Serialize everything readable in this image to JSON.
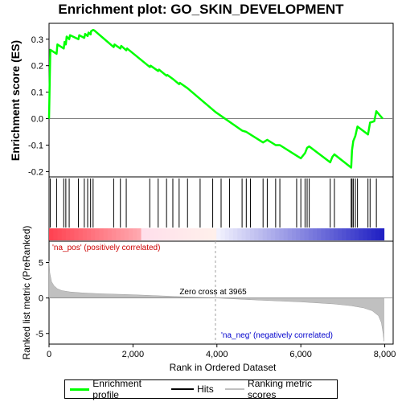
{
  "title": "Enrichment plot: GO_SKIN_DEVELOPMENT",
  "chart_data": [
    {
      "type": "line",
      "ylabel": "Enrichment score (ES)",
      "ylim": [
        -0.22,
        0.36
      ],
      "xlim": [
        0,
        8200
      ],
      "yticks": [
        "-0.2",
        "-0.1",
        "0.0",
        "0.1",
        "0.2",
        "0.3"
      ],
      "ytick_values": [
        -0.2,
        -0.1,
        0.0,
        0.1,
        0.2,
        0.3
      ],
      "grid": false,
      "series": [
        {
          "name": "Enrichment profile",
          "color": "#00ff00",
          "x": [
            0,
            20,
            30,
            180,
            200,
            350,
            370,
            400,
            420,
            480,
            500,
            700,
            720,
            840,
            860,
            920,
            940,
            990,
            1000,
            1050,
            1080,
            1540,
            1560,
            1700,
            1720,
            1840,
            1860,
            2400,
            2420,
            2600,
            2620,
            2800,
            2820,
            2950,
            3100,
            3120,
            3300,
            3965,
            4600,
            4700,
            4800,
            5100,
            5200,
            5400,
            5500,
            5900,
            6000,
            6100,
            6150,
            6200,
            6700,
            6750,
            6800,
            7200,
            7220,
            7250,
            7300,
            7350,
            7600,
            7650,
            7750,
            7800,
            7950
          ],
          "y": [
            0.0,
            0.17,
            0.26,
            0.245,
            0.28,
            0.265,
            0.29,
            0.28,
            0.31,
            0.3,
            0.315,
            0.3,
            0.315,
            0.305,
            0.32,
            0.312,
            0.325,
            0.318,
            0.33,
            0.335,
            0.333,
            0.27,
            0.28,
            0.265,
            0.275,
            0.258,
            0.265,
            0.195,
            0.2,
            0.18,
            0.185,
            0.162,
            0.165,
            0.15,
            0.13,
            0.135,
            0.115,
            0.025,
            -0.045,
            -0.05,
            -0.06,
            -0.09,
            -0.08,
            -0.1,
            -0.1,
            -0.14,
            -0.15,
            -0.13,
            -0.11,
            -0.105,
            -0.165,
            -0.145,
            -0.135,
            -0.185,
            -0.12,
            -0.085,
            -0.065,
            -0.03,
            -0.06,
            -0.015,
            -0.01,
            0.028,
            0.0
          ]
        }
      ]
    },
    {
      "type": "bar",
      "name": "Hits",
      "xlim": [
        0,
        8200
      ],
      "hits": [
        30,
        180,
        350,
        400,
        480,
        700,
        840,
        920,
        990,
        1050,
        1540,
        1700,
        1840,
        2400,
        2600,
        2800,
        2950,
        3100,
        3300,
        3600,
        3900,
        4100,
        4300,
        4600,
        4700,
        4800,
        5100,
        5200,
        5400,
        5500,
        5900,
        6000,
        6100,
        6150,
        6200,
        6700,
        6800,
        7200,
        7220,
        7250,
        7300,
        7350,
        7600,
        7650,
        7800
      ]
    },
    {
      "type": "area",
      "xlabel": "Rank in Ordered Dataset",
      "ylabel": "Ranked list metric (PreRanked)",
      "xlim": [
        0,
        8200
      ],
      "ylim": [
        -6.5,
        8
      ],
      "xticks": [
        "0",
        "2,000",
        "4,000",
        "6,000",
        "8,000"
      ],
      "xtick_values": [
        0,
        2000,
        4000,
        6000,
        8000
      ],
      "yticks": [
        "-5",
        "0",
        "5"
      ],
      "ytick_values": [
        -5,
        0,
        5
      ],
      "series": [
        {
          "name": "Ranking metric scores",
          "color": "#c0c0c0",
          "x": [
            0,
            20,
            60,
            120,
            200,
            300,
            500,
            800,
            1200,
            2000,
            3000,
            3965,
            5000,
            6000,
            6800,
            7200,
            7500,
            7700,
            7850,
            7920,
            7960,
            7980
          ],
          "y": [
            5.2,
            3.5,
            2.3,
            1.7,
            1.3,
            1.05,
            0.85,
            0.72,
            0.6,
            0.45,
            0.22,
            0.0,
            -0.3,
            -0.55,
            -0.85,
            -1.1,
            -1.4,
            -1.8,
            -2.5,
            -3.5,
            -5.0,
            -6.1
          ]
        }
      ],
      "annotations": [
        {
          "text": "'na_pos' (positively correlated)",
          "color": "#cc0000"
        },
        {
          "text": "Zero cross at 3965",
          "color": "#000000"
        },
        {
          "text": "'na_neg' (negatively correlated)",
          "color": "#0000cc"
        }
      ],
      "zero_cross": 3965
    }
  ],
  "legend": {
    "items": [
      {
        "label": "Enrichment profile",
        "color": "#00ff00"
      },
      {
        "label": "Hits",
        "color": "#000000"
      },
      {
        "label": "Ranking metric scores",
        "color": "#c0c0c0"
      }
    ]
  }
}
